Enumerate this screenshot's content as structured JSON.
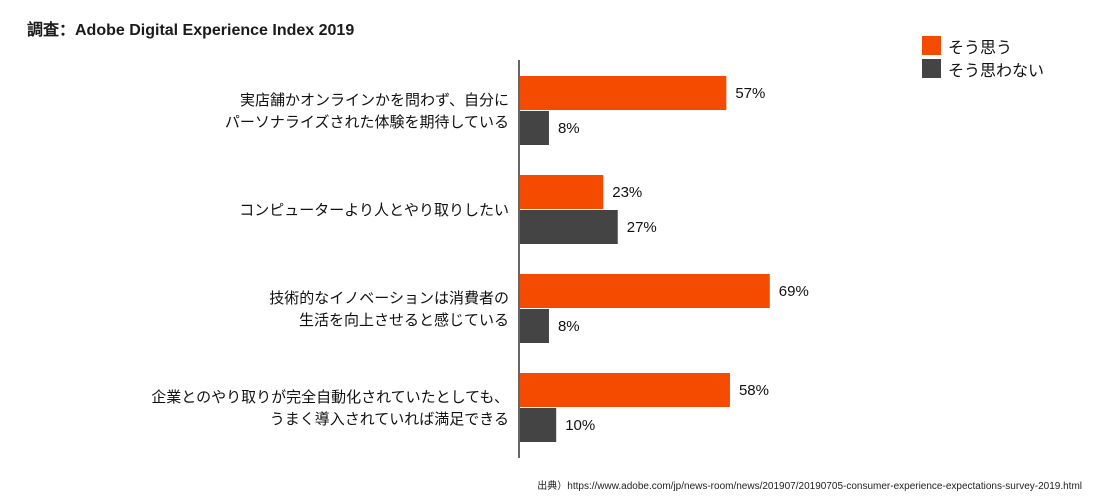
{
  "chart_data": {
    "type": "bar",
    "orientation": "horizontal",
    "title": "調査：Adobe Digital Experience Index 2019",
    "categories": [
      [
        "実店舗かオンラインかを問わず、自分に",
        "パーソナライズされた体験を期待している"
      ],
      [
        "コンピューターより人とやり取りしたい"
      ],
      [
        "技術的なイノベーションは消費者の",
        "生活を向上させると感じている"
      ],
      [
        "企業とのやり取りが完全自動化されていたとしても、",
        "うまく導入されていれば満足できる"
      ]
    ],
    "series": [
      {
        "name": "そう思う",
        "color": "#f54b00",
        "values": [
          57,
          23,
          69,
          58
        ]
      },
      {
        "name": "そう思わない",
        "color": "#444444",
        "values": [
          8,
          27,
          8,
          10
        ]
      }
    ],
    "value_suffix": "%",
    "xlim": [
      0,
      100
    ],
    "xlabel": "",
    "ylabel": "",
    "grid": false,
    "legend_position": "top-right"
  },
  "source": "出典）https://www.adobe.com/jp/news-room/news/201907/20190705-consumer-experience-expectations-survey-2019.html"
}
